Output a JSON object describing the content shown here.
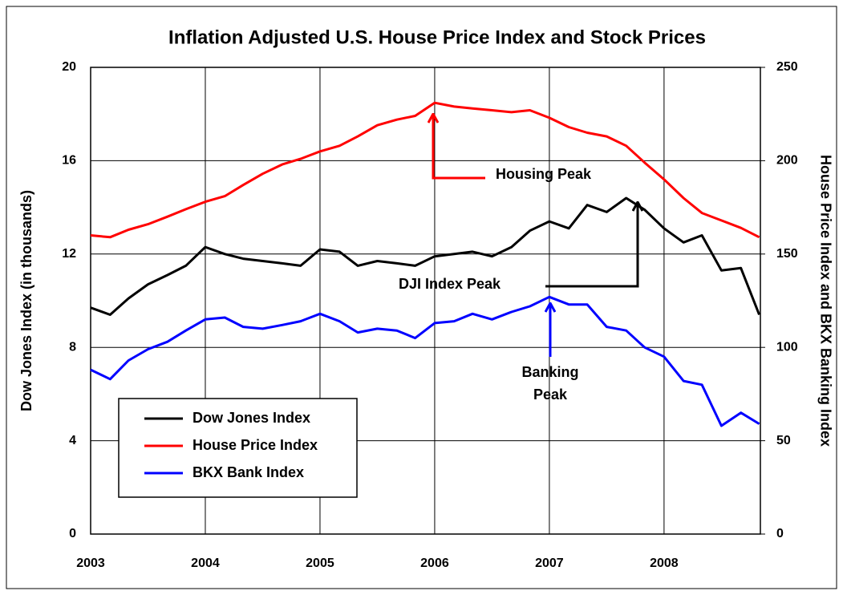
{
  "chart_data": {
    "type": "line",
    "title": "Inflation Adjusted U.S. House Price Index and Stock Prices",
    "ylabel": "Dow Jones Index (in thousands)",
    "y2label": "House Price Index and BKX Banking Index",
    "x": [
      2003.0,
      2003.17,
      2003.33,
      2003.5,
      2003.67,
      2003.83,
      2004.0,
      2004.17,
      2004.33,
      2004.5,
      2004.67,
      2004.83,
      2005.0,
      2005.17,
      2005.33,
      2005.5,
      2005.67,
      2005.83,
      2006.0,
      2006.17,
      2006.33,
      2006.5,
      2006.67,
      2006.83,
      2007.0,
      2007.17,
      2007.33,
      2007.5,
      2007.67,
      2007.83,
      2008.0,
      2008.17,
      2008.33,
      2008.5,
      2008.67,
      2008.83
    ],
    "series": [
      {
        "name": "Dow Jones Index",
        "color": "#000000",
        "axis": "y",
        "values": [
          9.7,
          9.4,
          10.1,
          10.7,
          11.1,
          11.5,
          12.3,
          12.0,
          11.8,
          11.7,
          11.6,
          11.5,
          12.2,
          12.1,
          11.5,
          11.7,
          11.6,
          11.5,
          11.9,
          12.0,
          12.1,
          11.9,
          12.3,
          13.0,
          13.4,
          13.1,
          14.1,
          13.8,
          14.4,
          13.9,
          13.1,
          12.5,
          12.8,
          11.3,
          11.4,
          9.4
        ]
      },
      {
        "name": "House Price Index",
        "color": "#ff0000",
        "axis": "y2",
        "values": [
          160,
          159,
          163,
          166,
          170,
          174,
          178,
          181,
          187,
          193,
          198,
          201,
          205,
          208,
          213,
          219,
          222,
          224,
          231,
          229,
          228,
          227,
          226,
          227,
          223,
          218,
          215,
          213,
          208,
          199,
          190,
          180,
          172,
          168,
          164,
          159
        ]
      },
      {
        "name": "BKX Bank Index",
        "color": "#0000ff",
        "axis": "y2",
        "values": [
          88,
          83,
          93,
          99,
          103,
          109,
          115,
          116,
          111,
          110,
          112,
          114,
          118,
          114,
          108,
          110,
          109,
          105,
          113,
          114,
          118,
          115,
          119,
          122,
          127,
          123,
          123,
          111,
          109,
          100,
          95,
          82,
          80,
          58,
          65,
          59
        ]
      }
    ],
    "xlim": [
      2003,
      2008.84
    ],
    "xticks": [
      2003,
      2004,
      2005,
      2006,
      2007,
      2008
    ],
    "ylim": [
      0,
      20
    ],
    "yticks": [
      0,
      4,
      8,
      12,
      16,
      20
    ],
    "y2lim": [
      0,
      250
    ],
    "y2ticks": [
      0,
      50,
      100,
      150,
      200,
      250
    ],
    "grid": true,
    "legend": "lower left",
    "annotations": [
      "Housing Peak",
      "DJI Index Peak",
      [
        "Banking",
        "Peak"
      ]
    ]
  }
}
